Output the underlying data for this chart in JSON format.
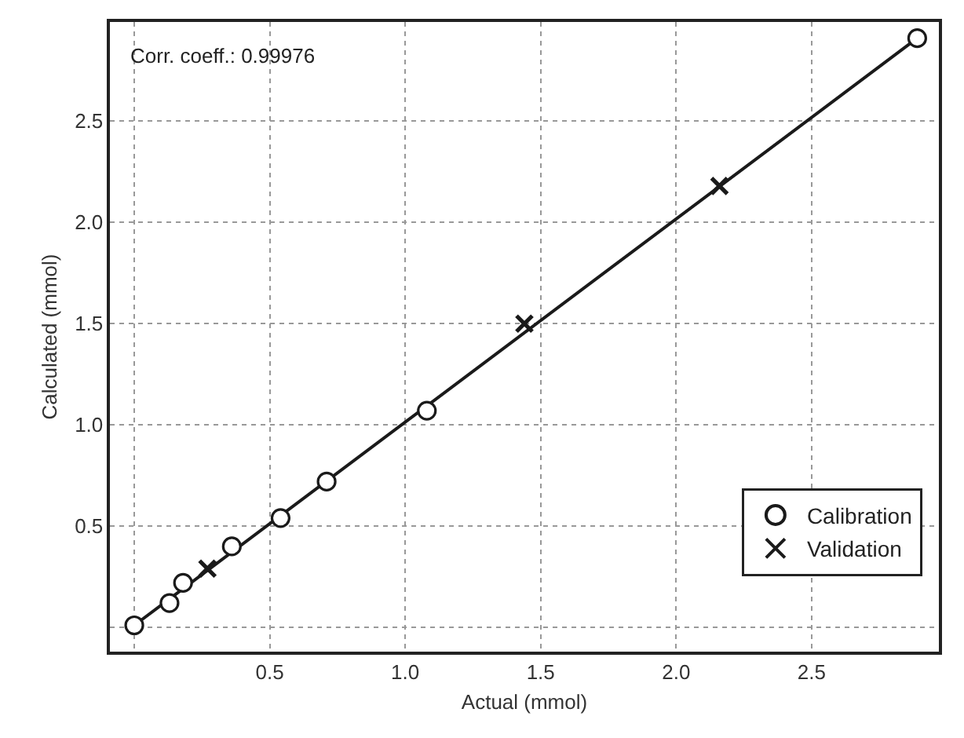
{
  "chart_data": {
    "type": "scatter",
    "xlabel": "Actual (mmol)",
    "ylabel": "Calculated (mmol)",
    "annotations": [
      "Corr. coeff.: 0.99976"
    ],
    "xlim": [
      -0.09,
      2.97
    ],
    "ylim": [
      -0.12,
      2.99
    ],
    "xticks": [
      {
        "value": 0,
        "label": null
      },
      0.5,
      {
        "value": 1,
        "label": "1.0"
      },
      1.5,
      {
        "value": 2,
        "label": "2.0"
      },
      2.5
    ],
    "yticks": [
      {
        "value": 0,
        "label": null
      },
      0.5,
      {
        "value": 1,
        "label": "1.0"
      },
      1.5,
      {
        "value": 2,
        "label": "2.0"
      },
      2.5
    ],
    "grid": true,
    "legend": "bottom right",
    "series": [
      {
        "type": "line",
        "color": "#1a1a1a",
        "marker": "none",
        "line_style": "solid",
        "x": [
          0,
          2.89
        ],
        "values": [
          0.01,
          2.91
        ]
      },
      {
        "name": "Calibration",
        "color": "#1a1a1a",
        "marker": "circle",
        "x": [
          0,
          0.13,
          0.18,
          0.36,
          0.54,
          0.71,
          1.08,
          2.89
        ],
        "values": [
          0.01,
          0.12,
          0.22,
          0.4,
          0.54,
          0.72,
          1.07,
          2.91
        ]
      },
      {
        "name": "Validation",
        "color": "#1a1a1a",
        "marker": "cross",
        "x": [
          0.27,
          1.44,
          2.16
        ],
        "values": [
          0.29,
          1.5,
          2.18
        ]
      }
    ]
  }
}
